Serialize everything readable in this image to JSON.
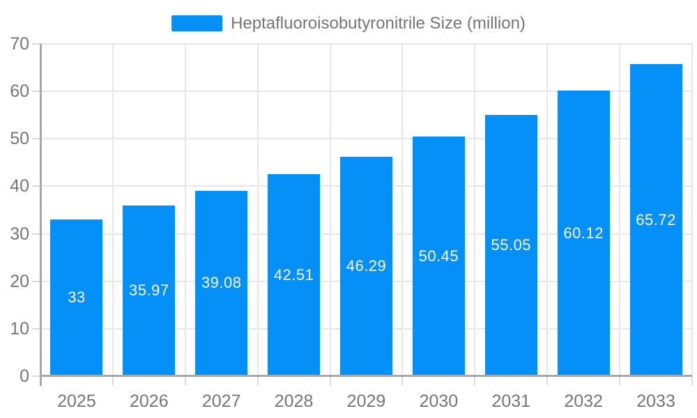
{
  "chart_data": {
    "type": "bar",
    "legend_label": "Heptafluoroisobutyronitrile Size (million)",
    "categories": [
      "2025",
      "2026",
      "2027",
      "2028",
      "2029",
      "2030",
      "2031",
      "2032",
      "2033"
    ],
    "values": [
      33,
      35.97,
      39.08,
      42.51,
      46.29,
      50.45,
      55.05,
      60.12,
      65.72
    ],
    "ylim": [
      0,
      70
    ],
    "yticks": [
      0,
      10,
      20,
      30,
      40,
      50,
      60,
      70
    ],
    "grid": true,
    "legend_position": "top-center",
    "bar_color": "#0590f8",
    "value_label_color": "#ffffff",
    "axis_label_color": "#757575",
    "gridline_color": "#e6e6e6",
    "tick_color": "#d9d9d9",
    "axis_line_color": "#a8a8a8",
    "background_color": "#ffffff"
  }
}
